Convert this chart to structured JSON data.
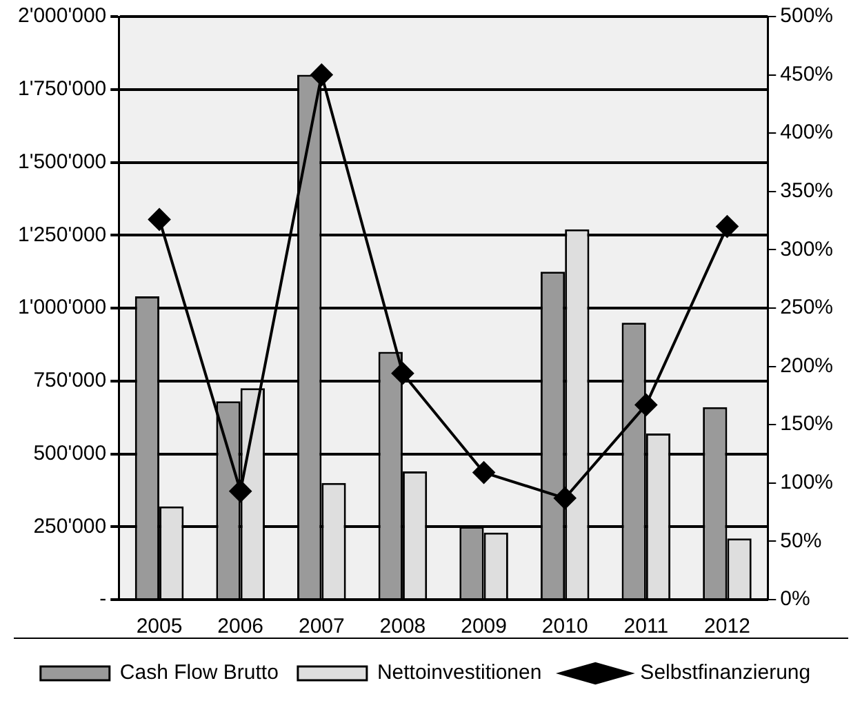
{
  "chart_data": {
    "type": "bar",
    "categories": [
      "2005",
      "2006",
      "2007",
      "2008",
      "2009",
      "2010",
      "2011",
      "2012"
    ],
    "series": [
      {
        "name": "Cash Flow Brutto",
        "color": "#9a9a9a",
        "values": [
          1040000,
          680000,
          1800000,
          850000,
          250000,
          1125000,
          950000,
          660000
        ]
      },
      {
        "name": "Nettoinvestitionen",
        "color": "#dedede",
        "values": [
          320000,
          725000,
          400000,
          440000,
          230000,
          1270000,
          570000,
          210000
        ]
      },
      {
        "name": "Selbstfinanzierung",
        "type": "line",
        "axis": "y2",
        "color": "#000000",
        "marker": "diamond",
        "line_style": "solid",
        "values": [
          326,
          93,
          450,
          194,
          109,
          87,
          167,
          320
        ]
      }
    ],
    "ylim": [
      0,
      2000000
    ],
    "yticks": [
      {
        "value": 0,
        "label": "-"
      },
      {
        "value": 250000,
        "label": "250'000"
      },
      {
        "value": 500000,
        "label": "500'000"
      },
      {
        "value": 750000,
        "label": "750'000"
      },
      {
        "value": 1000000,
        "label": "1'000'000"
      },
      {
        "value": 1250000,
        "label": "1'250'000"
      },
      {
        "value": 1500000,
        "label": "1'500'000"
      },
      {
        "value": 1750000,
        "label": "1'750'000"
      },
      {
        "value": 2000000,
        "label": "2'000'000"
      }
    ],
    "y2lim": [
      0,
      500
    ],
    "y2ticks": [
      {
        "value": 0,
        "label": "0%"
      },
      {
        "value": 50,
        "label": "50%"
      },
      {
        "value": 100,
        "label": "100%"
      },
      {
        "value": 150,
        "label": "150%"
      },
      {
        "value": 200,
        "label": "200%"
      },
      {
        "value": 250,
        "label": "250%"
      },
      {
        "value": 300,
        "label": "300%"
      },
      {
        "value": 350,
        "label": "350%"
      },
      {
        "value": 400,
        "label": "400%"
      },
      {
        "value": 450,
        "label": "450%"
      },
      {
        "value": 500,
        "label": "500%"
      }
    ],
    "grid": "y",
    "legend": "bottom"
  }
}
